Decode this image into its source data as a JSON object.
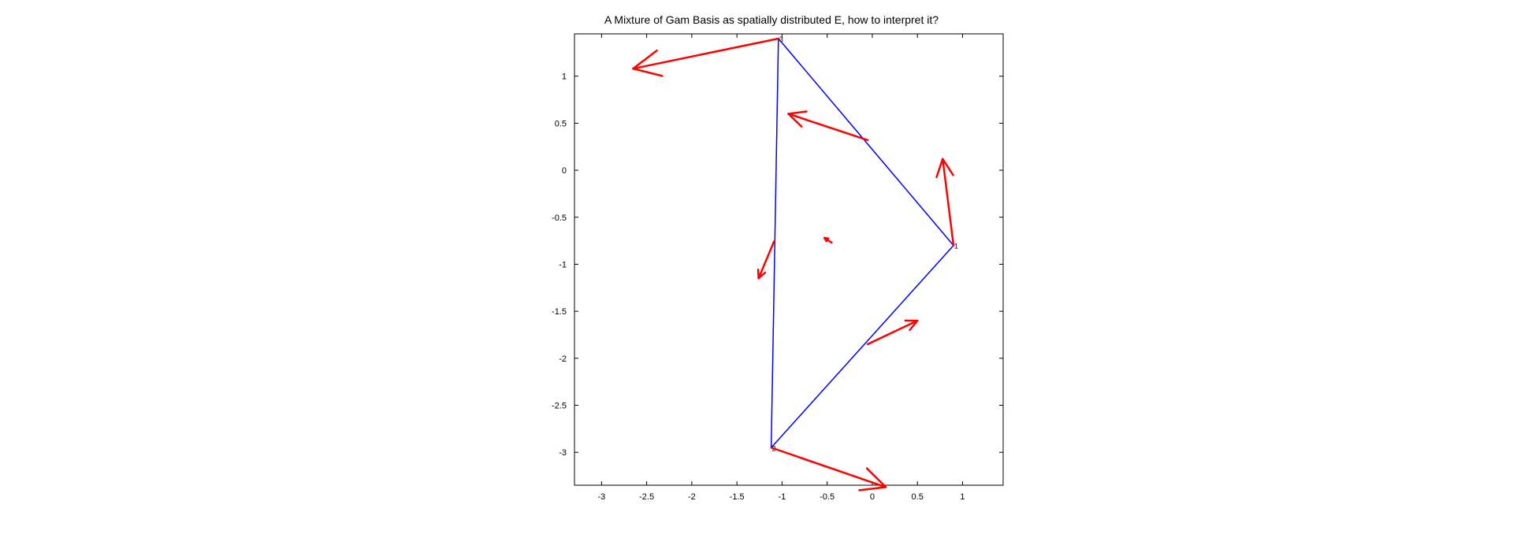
{
  "chart_data": {
    "type": "line",
    "title": "A Mixture of Gam Basis as spatially distributed E, how to interpret it?",
    "xlabel": "",
    "ylabel": "",
    "xlim": [
      -3.3,
      1.45
    ],
    "ylim": [
      -3.35,
      1.45
    ],
    "xticks": [
      -3,
      -2.5,
      -2,
      -1.5,
      -1,
      -0.5,
      0,
      0.5,
      1
    ],
    "xtick_labels": [
      "-3",
      "-2.5",
      "-2",
      "-1.5",
      "-1",
      "-0.5",
      "0",
      "0.5",
      "1"
    ],
    "yticks": [
      1,
      0.5,
      0,
      -0.5,
      -1,
      -1.5,
      -2,
      -2.5,
      -3
    ],
    "ytick_labels": [
      "1",
      "0.5",
      "0",
      "-0.5",
      "-1",
      "-1.5",
      "-2",
      "-2.5",
      "-3"
    ],
    "grid": false,
    "colors": {
      "triangle": "#0000ff",
      "arrows": "#ff0000",
      "axes": "#000000"
    },
    "triangle": {
      "vertices": [
        {
          "label": "1",
          "x": 0.9,
          "y": -0.8
        },
        {
          "label": "2",
          "x": -1.12,
          "y": -2.95
        },
        {
          "label": "3",
          "x": -1.04,
          "y": 1.4
        }
      ]
    },
    "arrows": [
      {
        "x0": -1.04,
        "y0": 1.4,
        "x1": -2.65,
        "y1": 1.08
      },
      {
        "x0": -0.05,
        "y0": 0.32,
        "x1": -0.93,
        "y1": 0.6
      },
      {
        "x0": 0.9,
        "y0": -0.8,
        "x1": 0.78,
        "y1": 0.12
      },
      {
        "x0": -0.45,
        "y0": -0.77,
        "x1": -0.53,
        "y1": -0.72
      },
      {
        "x0": -1.09,
        "y0": -0.76,
        "x1": -1.26,
        "y1": -1.15
      },
      {
        "x0": -0.05,
        "y0": -1.85,
        "x1": 0.5,
        "y1": -1.6
      },
      {
        "x0": -1.12,
        "y0": -2.95,
        "x1": 0.15,
        "y1": -3.37
      }
    ]
  }
}
